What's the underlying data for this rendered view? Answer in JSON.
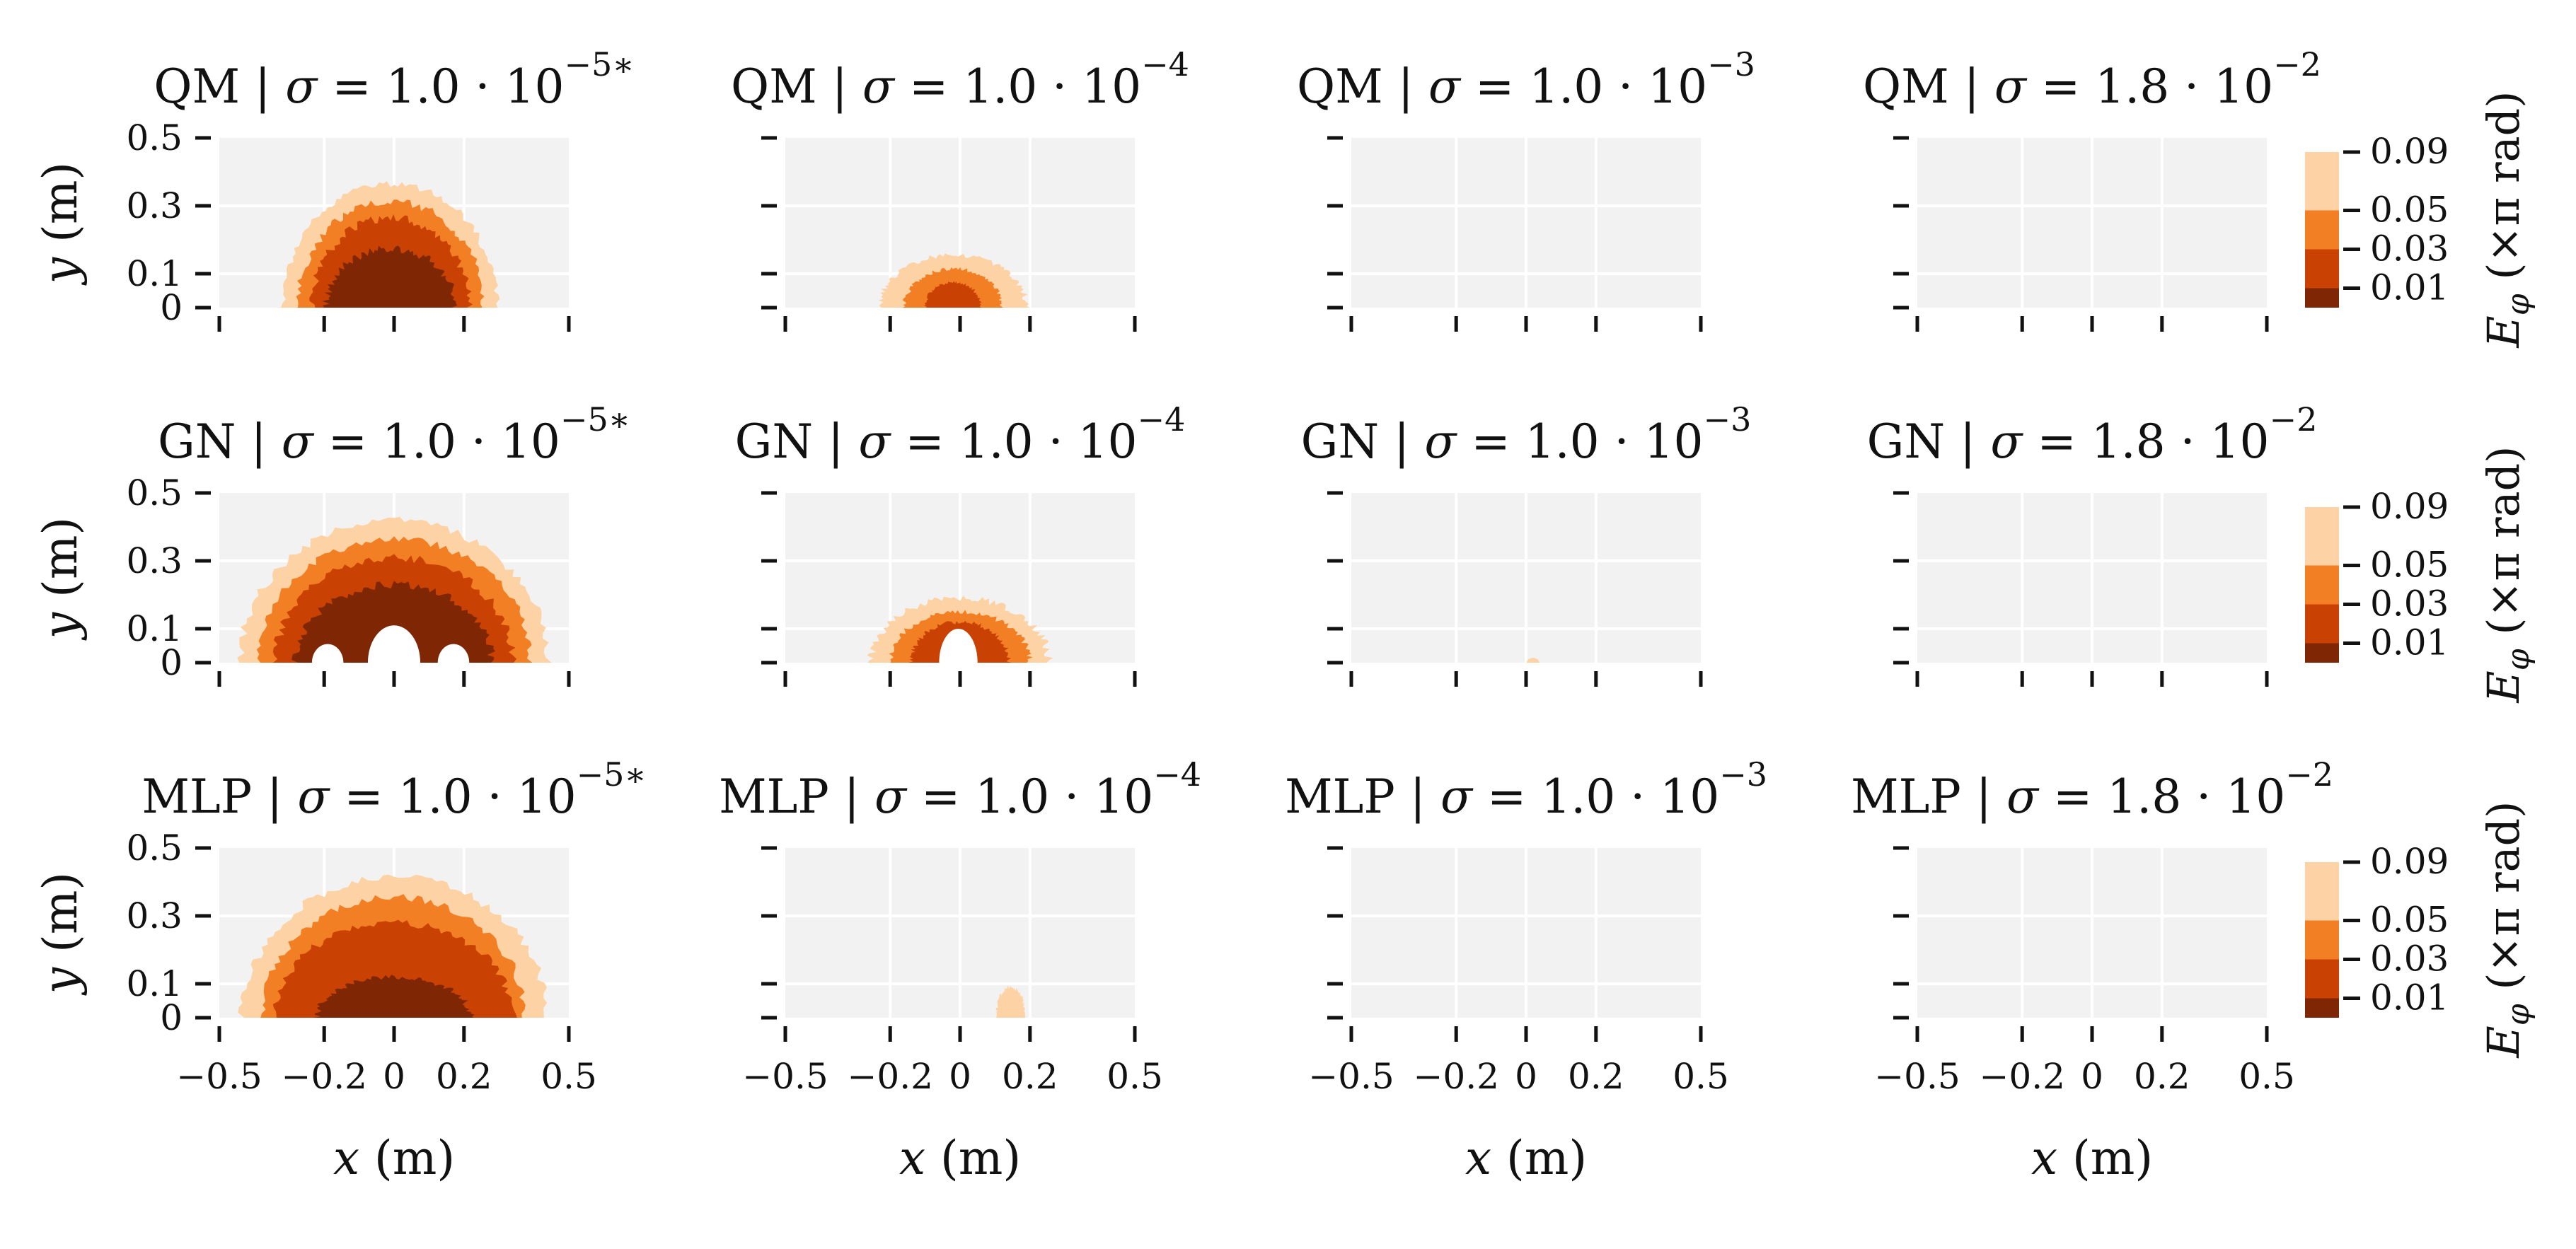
{
  "chart_data": {
    "type": "contour",
    "grid": "on",
    "rows": [
      {
        "method": "QM"
      },
      {
        "method": "GN"
      },
      {
        "method": "MLP"
      }
    ],
    "columns": [
      {
        "sigma_mantissa": "1.0",
        "sigma_exp": "−5∗",
        "sigma": 1e-05,
        "marked": true
      },
      {
        "sigma_mantissa": "1.0",
        "sigma_exp": "−4",
        "sigma": 0.0001
      },
      {
        "sigma_mantissa": "1.0",
        "sigma_exp": "−3",
        "sigma": 0.001
      },
      {
        "sigma_mantissa": "1.8",
        "sigma_exp": "−2",
        "sigma": 0.018
      }
    ],
    "sigma_symbol": "σ",
    "title_sep": "|",
    "title_mid": "= ",
    "title_times": " · 10",
    "x_axis": {
      "label_var": "x",
      "label_unit": "(m)",
      "range": [
        -0.5,
        0.5
      ],
      "ticks": [
        -0.5,
        -0.2,
        0,
        0.2,
        0.5
      ],
      "tick_labels": [
        "−0.5",
        "−0.2",
        "0",
        "0.2",
        "0.5"
      ]
    },
    "y_axis": {
      "label_var": "y",
      "label_unit": "(m)",
      "range": [
        0,
        0.5
      ],
      "ticks": [
        0,
        0.1,
        0.3,
        0.5
      ],
      "tick_labels": [
        "0",
        "0.1",
        "0.3",
        "0.5"
      ]
    },
    "colorbar": {
      "label_var": "E",
      "label_sub": "φ",
      "label_unit": "(×π rad)",
      "levels": [
        0.01,
        0.03,
        0.05,
        0.09
      ],
      "tick_labels": [
        "0.01",
        "0.03",
        "0.05",
        "0.09"
      ],
      "colors": [
        "#7f2704",
        "#c94204",
        "#f37f24",
        "#fdd2a4"
      ]
    },
    "colors": {
      "background": "#f2f2f2",
      "grid": "#ffffff"
    },
    "panels": [
      [
        {
          "levels": [
            {
              "cx": -0.01,
              "cy": 0.0,
              "rx": 0.305,
              "ry": 0.365,
              "jitter": 0.03,
              "seed": 1
            },
            {
              "cx": -0.01,
              "cy": 0.0,
              "rx": 0.265,
              "ry": 0.315,
              "jitter": 0.04,
              "seed": 2
            },
            {
              "cx": -0.01,
              "cy": 0.0,
              "rx": 0.225,
              "ry": 0.265,
              "jitter": 0.05,
              "seed": 3
            },
            {
              "cx": -0.01,
              "cy": 0.0,
              "rx": 0.185,
              "ry": 0.175,
              "jitter": 0.07,
              "seed": 4
            }
          ]
        },
        {
          "levels": [
            {
              "cx": -0.02,
              "cy": 0.0,
              "rx": 0.21,
              "ry": 0.155,
              "jitter": 0.05,
              "seed": 5
            },
            {
              "cx": -0.02,
              "cy": 0.0,
              "rx": 0.14,
              "ry": 0.115,
              "jitter": 0.05,
              "seed": 6
            },
            {
              "cx": -0.02,
              "cy": 0.0,
              "rx": 0.08,
              "ry": 0.075,
              "jitter": 0.06,
              "seed": 7
            }
          ]
        },
        {
          "levels": []
        },
        {
          "levels": []
        }
      ],
      [
        {
          "levels": [
            {
              "cx": 0.0,
              "cy": 0.0,
              "rx": 0.44,
              "ry": 0.42,
              "jitter": 0.03,
              "seed": 11
            },
            {
              "cx": 0.0,
              "cy": 0.0,
              "rx": 0.39,
              "ry": 0.365,
              "jitter": 0.03,
              "seed": 12
            },
            {
              "cx": 0.0,
              "cy": 0.0,
              "rx": 0.34,
              "ry": 0.31,
              "jitter": 0.04,
              "seed": 13
            },
            {
              "cx": 0.0,
              "cy": 0.0,
              "rx": 0.28,
              "ry": 0.23,
              "jitter": 0.05,
              "seed": 14
            }
          ],
          "holes": [
            {
              "cx": 0.0,
              "cy": 0.0,
              "rx": 0.075,
              "ry": 0.11
            },
            {
              "cx": -0.19,
              "cy": 0.0,
              "rx": 0.045,
              "ry": 0.055
            },
            {
              "cx": 0.17,
              "cy": 0.0,
              "rx": 0.045,
              "ry": 0.055
            }
          ]
        },
        {
          "levels": [
            {
              "cx": 0.0,
              "cy": 0.0,
              "rx": 0.255,
              "ry": 0.19,
              "jitter": 0.05,
              "seed": 15
            },
            {
              "cx": 0.0,
              "cy": 0.0,
              "rx": 0.2,
              "ry": 0.15,
              "jitter": 0.05,
              "seed": 16
            },
            {
              "cx": 0.0,
              "cy": 0.0,
              "rx": 0.14,
              "ry": 0.12,
              "jitter": 0.06,
              "seed": 17
            }
          ],
          "holes": [
            {
              "cx": -0.005,
              "cy": 0.0,
              "rx": 0.055,
              "ry": 0.1
            }
          ]
        },
        {
          "levels": [
            {
              "cx": 0.02,
              "cy": 0.0,
              "rx": 0.018,
              "ry": 0.014,
              "jitter": 0.0,
              "seed": 18
            }
          ]
        },
        {
          "levels": []
        }
      ],
      [
        {
          "levels": [
            {
              "cx": 0.0,
              "cy": 0.0,
              "rx": 0.435,
              "ry": 0.415,
              "jitter": 0.03,
              "seed": 21
            },
            {
              "cx": 0.0,
              "cy": 0.0,
              "rx": 0.375,
              "ry": 0.355,
              "jitter": 0.03,
              "seed": 22
            },
            {
              "cx": 0.0,
              "cy": 0.0,
              "rx": 0.34,
              "ry": 0.28,
              "jitter": 0.04,
              "seed": 23
            },
            {
              "cx": 0.0,
              "cy": 0.0,
              "rx": 0.22,
              "ry": 0.12,
              "jitter": 0.06,
              "seed": 24
            }
          ]
        },
        {
          "levels": [
            {
              "cx": 0.145,
              "cy": 0.015,
              "rx": 0.04,
              "ry": 0.075,
              "jitter": 0.08,
              "seed": 25
            }
          ]
        },
        {
          "levels": []
        },
        {
          "levels": []
        }
      ]
    ]
  }
}
